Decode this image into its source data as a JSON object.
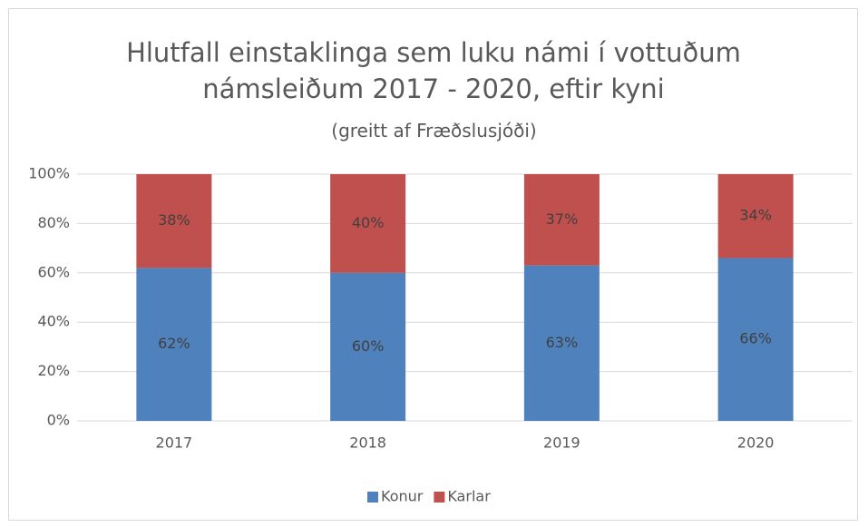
{
  "chart_data": {
    "type": "stacked_bar",
    "title": "Hlutfall einstaklinga sem luku námi í vottuðum námsleiðum 2017 - 2020, eftir kyni",
    "subtitle": "(greitt af Fræðslusjóði)",
    "categories": [
      "2017",
      "2018",
      "2019",
      "2020"
    ],
    "series": [
      {
        "name": "Konur",
        "color": "#4f81bd",
        "values": [
          62,
          60,
          63,
          66
        ],
        "value_labels": [
          "62%",
          "60%",
          "63%",
          "66%"
        ]
      },
      {
        "name": "Karlar",
        "color": "#c0504d",
        "values": [
          38,
          40,
          37,
          34
        ],
        "value_labels": [
          "38%",
          "40%",
          "37%",
          "34%"
        ]
      }
    ],
    "ylim": [
      0,
      100
    ],
    "yticks": [
      {
        "value": 0,
        "label": "0%"
      },
      {
        "value": 20,
        "label": "20%"
      },
      {
        "value": 40,
        "label": "40%"
      },
      {
        "value": 60,
        "label": "60%"
      },
      {
        "value": 80,
        "label": "80%"
      },
      {
        "value": 100,
        "label": "100%"
      }
    ],
    "grid": true,
    "legend": "bottom"
  }
}
